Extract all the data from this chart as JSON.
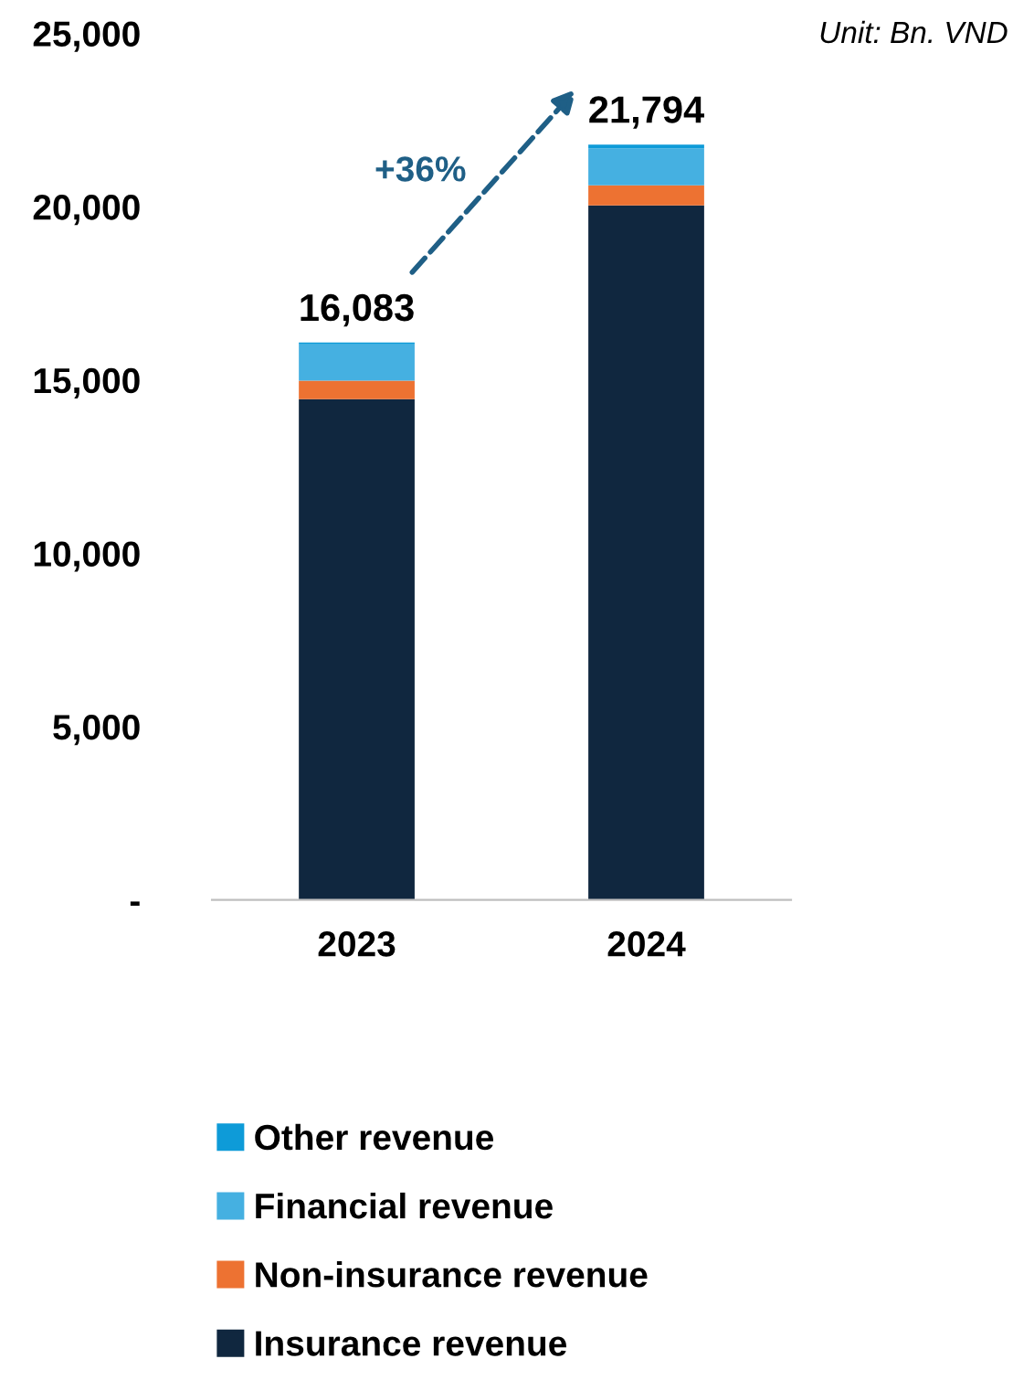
{
  "chart_data": {
    "type": "bar",
    "stacked": true,
    "categories": [
      "2023",
      "2024"
    ],
    "series": [
      {
        "name": "Insurance revenue",
        "color": "#10273f",
        "values": [
          14450,
          20040
        ]
      },
      {
        "name": "Non-insurance revenue",
        "color": "#ed7232",
        "values": [
          530,
          580
        ]
      },
      {
        "name": "Financial revenue",
        "color": "#45b0e1",
        "values": [
          1050,
          1060
        ]
      },
      {
        "name": "Other revenue",
        "color": "#0e9bd8",
        "values": [
          53,
          114
        ]
      }
    ],
    "totals": [
      "16,083",
      "21,794"
    ],
    "ylim": [
      0,
      25000
    ],
    "yticks": [
      {
        "value": 0,
        "label": "-"
      },
      {
        "value": 5000,
        "label": "5,000"
      },
      {
        "value": 10000,
        "label": "10,000"
      },
      {
        "value": 15000,
        "label": "15,000"
      },
      {
        "value": 20000,
        "label": "20,000"
      },
      {
        "value": 25000,
        "label": "25,000"
      }
    ],
    "annotations": [
      "Unit: Bn. VND",
      "+36%"
    ],
    "legend": "bottom",
    "grid": false
  }
}
